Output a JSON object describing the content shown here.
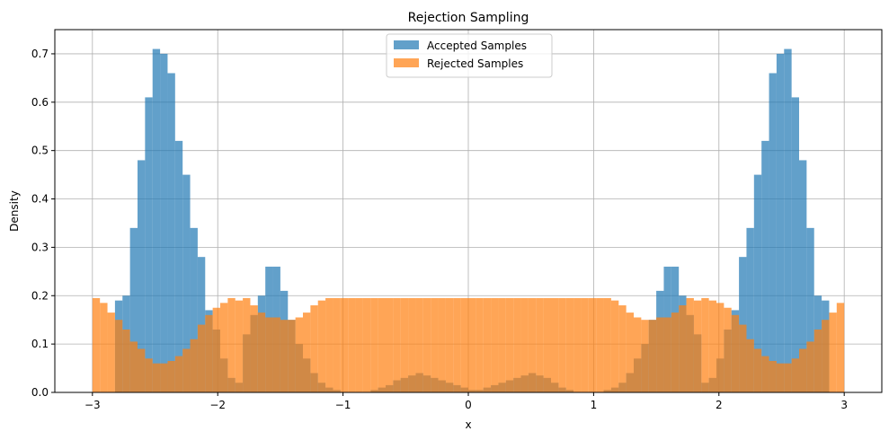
{
  "chart_data": {
    "type": "bar",
    "subtype": "overlaid-histogram",
    "title": "Rejection Sampling",
    "xlabel": "x",
    "ylabel": "Density",
    "xlim": [
      -3.3,
      3.3
    ],
    "ylim": [
      0,
      0.75
    ],
    "xticks": [
      -3,
      -2,
      -1,
      0,
      1,
      2,
      3
    ],
    "xtick_labels": [
      "−3",
      "−2",
      "−1",
      "0",
      "1",
      "2",
      "3"
    ],
    "yticks": [
      0.0,
      0.1,
      0.2,
      0.3,
      0.4,
      0.5,
      0.6,
      0.7
    ],
    "ytick_labels": [
      "0.0",
      "0.1",
      "0.2",
      "0.3",
      "0.4",
      "0.5",
      "0.6",
      "0.7"
    ],
    "grid": true,
    "legend_position": "top-center",
    "bins": 100,
    "bin_range": [
      -3,
      3
    ],
    "series": [
      {
        "name": "Accepted Samples",
        "color": "#1f77b4",
        "opacity": 0.7,
        "values": [
          0.0,
          0.0,
          0.0,
          0.19,
          0.2,
          0.34,
          0.48,
          0.61,
          0.71,
          0.7,
          0.66,
          0.52,
          0.45,
          0.34,
          0.28,
          0.17,
          0.13,
          0.07,
          0.03,
          0.02,
          0.12,
          0.16,
          0.2,
          0.26,
          0.26,
          0.21,
          0.15,
          0.1,
          0.07,
          0.04,
          0.02,
          0.01,
          0.005,
          0.0,
          0.0,
          0.0,
          0.0,
          0.005,
          0.01,
          0.015,
          0.025,
          0.03,
          0.035,
          0.04,
          0.035,
          0.03,
          0.025,
          0.02,
          0.015,
          0.01,
          0.005,
          0.005,
          0.01,
          0.015,
          0.02,
          0.025,
          0.03,
          0.035,
          0.04,
          0.035,
          0.03,
          0.02,
          0.01,
          0.005,
          0.0,
          0.0,
          0.0,
          0.0,
          0.005,
          0.01,
          0.02,
          0.04,
          0.07,
          0.1,
          0.15,
          0.21,
          0.26,
          0.26,
          0.2,
          0.16,
          0.12,
          0.02,
          0.03,
          0.07,
          0.13,
          0.17,
          0.28,
          0.34,
          0.45,
          0.52,
          0.66,
          0.7,
          0.71,
          0.61,
          0.48,
          0.34,
          0.2,
          0.19,
          0.0,
          0.0
        ]
      },
      {
        "name": "Rejected Samples",
        "color": "#ff7f0e",
        "opacity": 0.7,
        "values": [
          0.195,
          0.185,
          0.165,
          0.15,
          0.13,
          0.105,
          0.09,
          0.07,
          0.06,
          0.06,
          0.065,
          0.075,
          0.09,
          0.11,
          0.14,
          0.16,
          0.175,
          0.185,
          0.195,
          0.19,
          0.195,
          0.18,
          0.165,
          0.155,
          0.155,
          0.15,
          0.15,
          0.155,
          0.165,
          0.18,
          0.19,
          0.195,
          0.195,
          0.195,
          0.195,
          0.195,
          0.195,
          0.195,
          0.195,
          0.195,
          0.195,
          0.195,
          0.195,
          0.195,
          0.195,
          0.195,
          0.195,
          0.195,
          0.195,
          0.195,
          0.195,
          0.195,
          0.195,
          0.195,
          0.195,
          0.195,
          0.195,
          0.195,
          0.195,
          0.195,
          0.195,
          0.195,
          0.195,
          0.195,
          0.195,
          0.195,
          0.195,
          0.195,
          0.195,
          0.19,
          0.18,
          0.165,
          0.155,
          0.15,
          0.15,
          0.155,
          0.155,
          0.165,
          0.18,
          0.195,
          0.19,
          0.195,
          0.19,
          0.185,
          0.175,
          0.16,
          0.14,
          0.11,
          0.09,
          0.075,
          0.065,
          0.06,
          0.06,
          0.07,
          0.09,
          0.105,
          0.13,
          0.15,
          0.165,
          0.185
        ]
      }
    ]
  }
}
